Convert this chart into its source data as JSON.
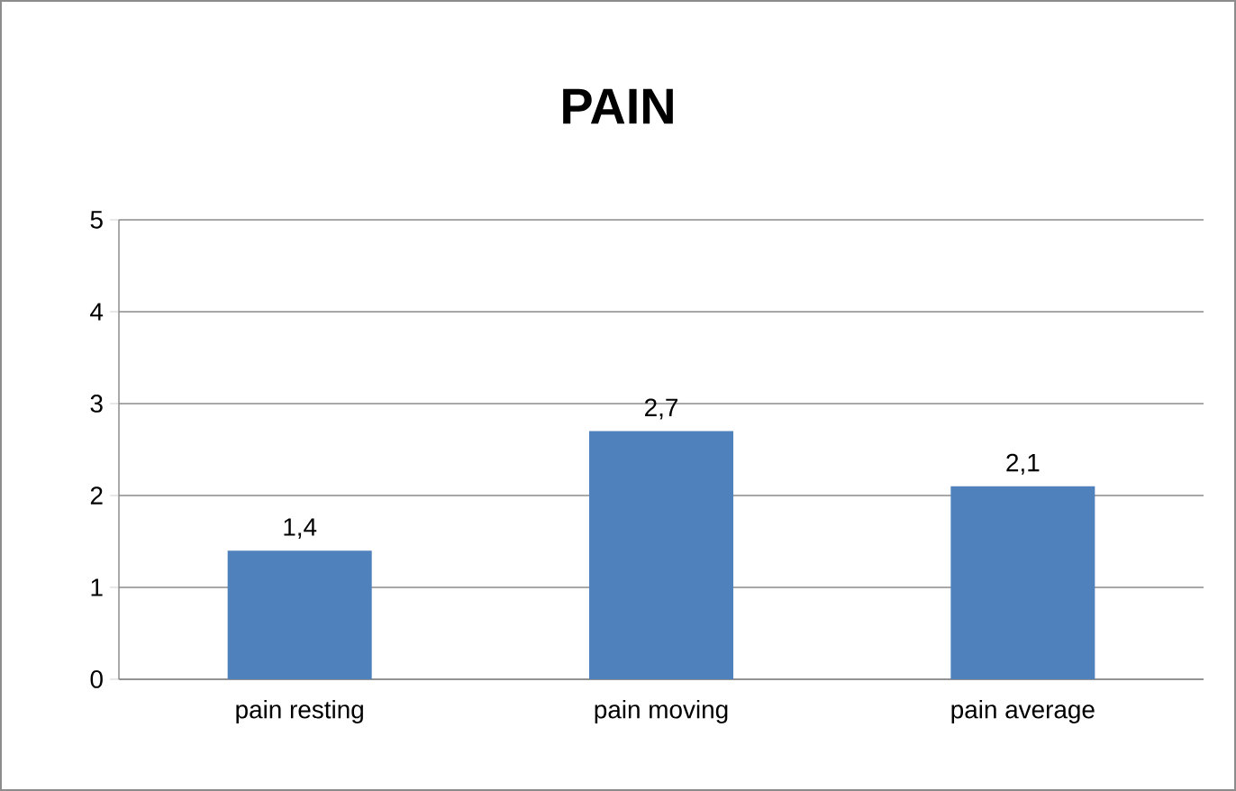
{
  "chart_data": {
    "type": "bar",
    "title": "PAIN",
    "categories": [
      "pain resting",
      "pain moving",
      "pain average"
    ],
    "values": [
      1.4,
      2.7,
      2.1
    ],
    "color": "#4f81bd",
    "value_labels": [
      "1,4",
      "2,7",
      "2,1"
    ],
    "ylim": [
      0,
      5
    ],
    "yticks": [
      0,
      1,
      2,
      3,
      4,
      5
    ],
    "grid": "y"
  }
}
